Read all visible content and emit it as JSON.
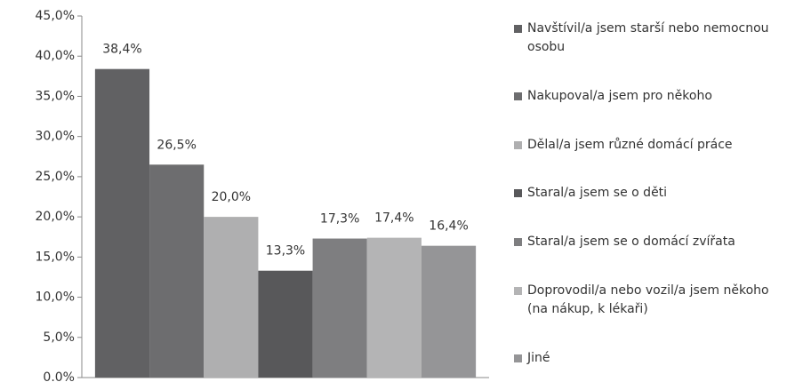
{
  "chart_data": {
    "type": "bar",
    "categories": [
      null
    ],
    "series": [
      {
        "name": "Navštívil/a jsem starší nebo nemocnou osobu",
        "color": "#616163",
        "values": [
          38.4
        ],
        "value_labels": [
          "38,4%"
        ]
      },
      {
        "name": "Nakupoval/a jsem pro někoho",
        "color": "#6d6d6f",
        "values": [
          26.5
        ],
        "value_labels": [
          "26,5%"
        ]
      },
      {
        "name": "Dělal/a jsem různé domácí práce",
        "color": "#afafb0",
        "values": [
          20.0
        ],
        "value_labels": [
          "20,0%"
        ]
      },
      {
        "name": "Staral/a jsem se o děti",
        "color": "#58585a",
        "values": [
          13.3
        ],
        "value_labels": [
          "13,3%"
        ]
      },
      {
        "name": "Staral/a jsem se o domácí zvířata",
        "color": "#7e7e80",
        "values": [
          17.3
        ],
        "value_labels": [
          "17,3%"
        ]
      },
      {
        "name": "Doprovodil/a nebo vozil/a jsem někoho (na nákup, k lékaři)",
        "color": "#b4b4b5",
        "values": [
          17.4
        ],
        "value_labels": [
          "17,4%"
        ]
      },
      {
        "name": "Jiné",
        "color": "#959597",
        "values": [
          16.4
        ],
        "value_labels": [
          "16,4%"
        ]
      }
    ],
    "ylim": [
      0,
      45
    ],
    "yticks": [
      {
        "value": 0,
        "label": "0.0%"
      },
      {
        "value": 5,
        "label": "5,0%"
      },
      {
        "value": 10,
        "label": "10,0%"
      },
      {
        "value": 15,
        "label": "15,0%"
      },
      {
        "value": 20,
        "label": "20,0%"
      },
      {
        "value": 25,
        "label": "25,0%"
      },
      {
        "value": 30,
        "label": "30,0%"
      },
      {
        "value": 35,
        "label": "35,0%"
      },
      {
        "value": 40,
        "label": "40,0%"
      },
      {
        "value": 45,
        "label": "45,0%"
      }
    ],
    "grid": false,
    "legend": "right"
  }
}
